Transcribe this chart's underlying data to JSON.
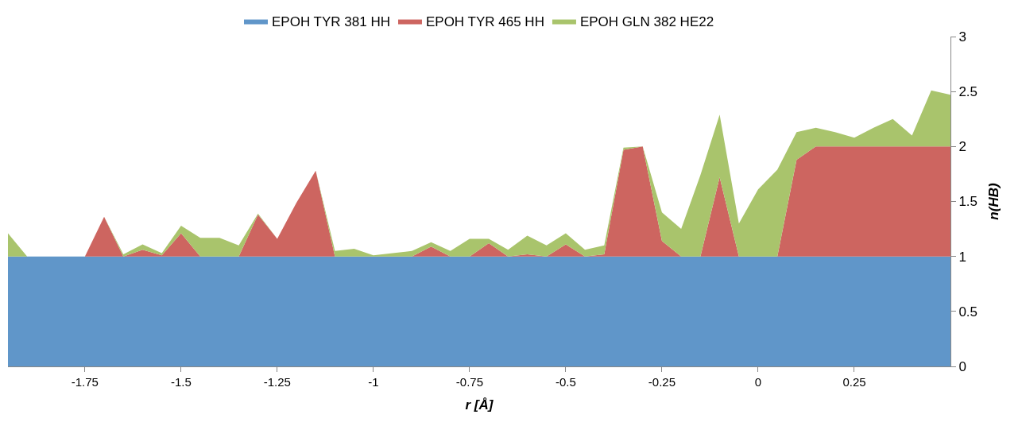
{
  "chart_data": {
    "type": "area",
    "stacked": true,
    "xlabel": "r [Å]",
    "ylabel": "n(HB)",
    "xlim": [
      -1.95,
      0.5
    ],
    "xticks": [
      -1.75,
      -1.5,
      -1.25,
      -1,
      -0.75,
      -0.5,
      -0.25,
      0,
      0.25
    ],
    "ylim": [
      0,
      3
    ],
    "yticks": [
      0,
      0.5,
      1,
      1.5,
      2,
      2.5,
      3
    ],
    "legend": "top",
    "x": [
      -1.95,
      -1.9,
      -1.85,
      -1.8,
      -1.75,
      -1.7,
      -1.65,
      -1.6,
      -1.55,
      -1.5,
      -1.45,
      -1.4,
      -1.35,
      -1.3,
      -1.25,
      -1.2,
      -1.15,
      -1.1,
      -1.05,
      -1.0,
      -0.95,
      -0.9,
      -0.85,
      -0.8,
      -0.75,
      -0.7,
      -0.65,
      -0.6,
      -0.55,
      -0.5,
      -0.45,
      -0.4,
      -0.35,
      -0.3,
      -0.25,
      -0.2,
      -0.15,
      -0.1,
      -0.05,
      0,
      0.05,
      0.1,
      0.15,
      0.2,
      0.25,
      0.3,
      0.35,
      0.4,
      0.45,
      0.5
    ],
    "series": [
      {
        "name": "EPOH TYR 381 HH",
        "color": "#6096c9",
        "values": [
          1,
          1,
          1,
          1,
          1,
          1,
          1,
          1,
          1,
          1,
          1,
          1,
          1,
          1,
          1,
          1,
          1,
          1,
          1,
          1,
          1,
          1,
          1,
          1,
          1,
          1,
          1,
          1,
          1,
          1,
          1,
          1,
          1,
          1,
          1,
          1,
          1,
          1,
          1,
          1,
          1,
          1,
          1,
          1,
          1,
          1,
          1,
          1,
          1,
          1
        ]
      },
      {
        "name": "EPOH TYR 465 HH",
        "color": "#cd6560",
        "values": [
          0,
          0,
          0,
          0,
          0,
          0.36,
          0,
          0.06,
          0.01,
          0.21,
          0,
          0,
          0,
          0.38,
          0.16,
          0.49,
          0.78,
          0,
          0,
          0,
          0,
          0,
          0.09,
          0,
          0,
          0.12,
          0,
          0.02,
          0,
          0.11,
          0,
          0.02,
          0.97,
          1.0,
          0.14,
          0,
          0,
          0.72,
          0,
          0,
          0,
          0.88,
          1,
          1,
          1,
          1,
          1,
          1,
          1,
          1
        ]
      },
      {
        "name": "EPOH GLN 382 HE22",
        "color": "#a9c46c",
        "values": [
          0.21,
          0,
          0,
          0,
          0,
          0,
          0.02,
          0.05,
          0.02,
          0.07,
          0.17,
          0.17,
          0.1,
          0.01,
          0,
          0,
          0,
          0.05,
          0.07,
          0.01,
          0.03,
          0.05,
          0.04,
          0.05,
          0.16,
          0.04,
          0.06,
          0.17,
          0.1,
          0.1,
          0.06,
          0.08,
          0.02,
          0,
          0.26,
          0.25,
          0.74,
          0.57,
          0.3,
          0.61,
          0.79,
          0.25,
          0.17,
          0.13,
          0.08,
          0.17,
          0.25,
          0.1,
          0.51,
          0.47
        ]
      }
    ]
  }
}
